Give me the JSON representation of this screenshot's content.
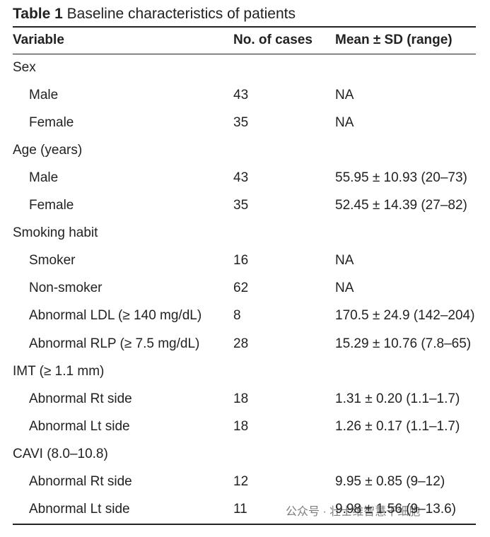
{
  "table": {
    "label": "Table 1",
    "title": "Baseline characteristics of patients",
    "header": [
      "Variable",
      "No. of cases",
      "Mean ± SD (range)"
    ],
    "groups": [
      {
        "label": "Sex",
        "rows": [
          [
            "Male",
            43,
            "NA"
          ],
          [
            "Female",
            35,
            "NA"
          ]
        ]
      },
      {
        "label": "Age (years)",
        "rows": [
          [
            "Male",
            43,
            "55.95 ± 10.93 (20–73)"
          ],
          [
            "Female",
            35,
            "52.45 ± 14.39 (27–82)"
          ]
        ]
      },
      {
        "label": "Smoking habit",
        "rows": [
          [
            "Smoker",
            16,
            "NA"
          ],
          [
            "Non-smoker",
            62,
            "NA"
          ],
          [
            "Abnormal LDL (≥ 140 mg/dL)",
            8,
            "170.5 ± 24.9 (142–204)"
          ],
          [
            "Abnormal RLP (≥ 7.5 mg/dL)",
            28,
            "15.29 ± 10.76 (7.8–65)"
          ]
        ]
      },
      {
        "label": "IMT (≥ 1.1 mm)",
        "rows": [
          [
            "Abnormal Rt side",
            18,
            "1.31 ± 0.20 (1.1–1.7)"
          ],
          [
            "Abnormal Lt side",
            18,
            "1.26 ± 0.17 (1.1–1.7)"
          ]
        ]
      },
      {
        "label": "CAVI (8.0–10.8)",
        "rows": [
          [
            "Abnormal Rt side",
            12,
            "9.95 ± 0.85 (9–12)"
          ],
          [
            "Abnormal Lt side",
            11,
            "9.98 ± 1.56 (9–13.6)"
          ]
        ]
      }
    ]
  },
  "watermark": "公众号 · 壮士维智慧干细胞"
}
